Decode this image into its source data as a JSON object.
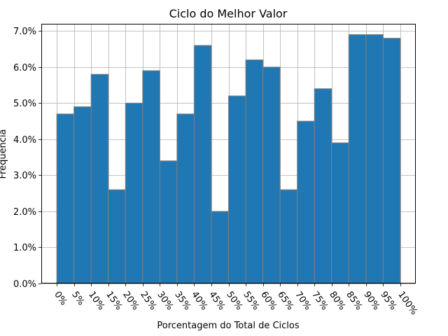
{
  "chart_data": {
    "type": "bar",
    "title": "Ciclo do Melhor Valor",
    "xlabel": "Porcentagem do Total de Ciclos",
    "ylabel": "Frequência",
    "x_tick_labels": [
      "0%",
      "5%",
      "10%",
      "15%",
      "20%",
      "25%",
      "30%",
      "35%",
      "40%",
      "45%",
      "50%",
      "55%",
      "60%",
      "65%",
      "70%",
      "75%",
      "80%",
      "85%",
      "90%",
      "95%",
      "100%"
    ],
    "bin_edges": [
      0,
      5,
      10,
      15,
      20,
      25,
      30,
      35,
      40,
      45,
      50,
      55,
      60,
      65,
      70,
      75,
      80,
      85,
      90,
      95,
      100
    ],
    "values": [
      4.7,
      4.9,
      5.8,
      2.6,
      5.0,
      5.9,
      3.4,
      4.7,
      6.6,
      2.0,
      5.2,
      6.2,
      6.0,
      2.6,
      4.5,
      5.4,
      3.9,
      6.9,
      6.9,
      6.8
    ],
    "y_tick_labels": [
      "0.0%",
      "1.0%",
      "2.0%",
      "3.0%",
      "4.0%",
      "5.0%",
      "6.0%",
      "7.0%"
    ],
    "y_ticks": [
      0,
      1,
      2,
      3,
      4,
      5,
      6,
      7
    ],
    "xlim": [
      -4.5,
      104.5
    ],
    "ylim": [
      0,
      7.2
    ],
    "grid": true,
    "bar_color": "#1f77b4",
    "edge_color": "#808080"
  }
}
